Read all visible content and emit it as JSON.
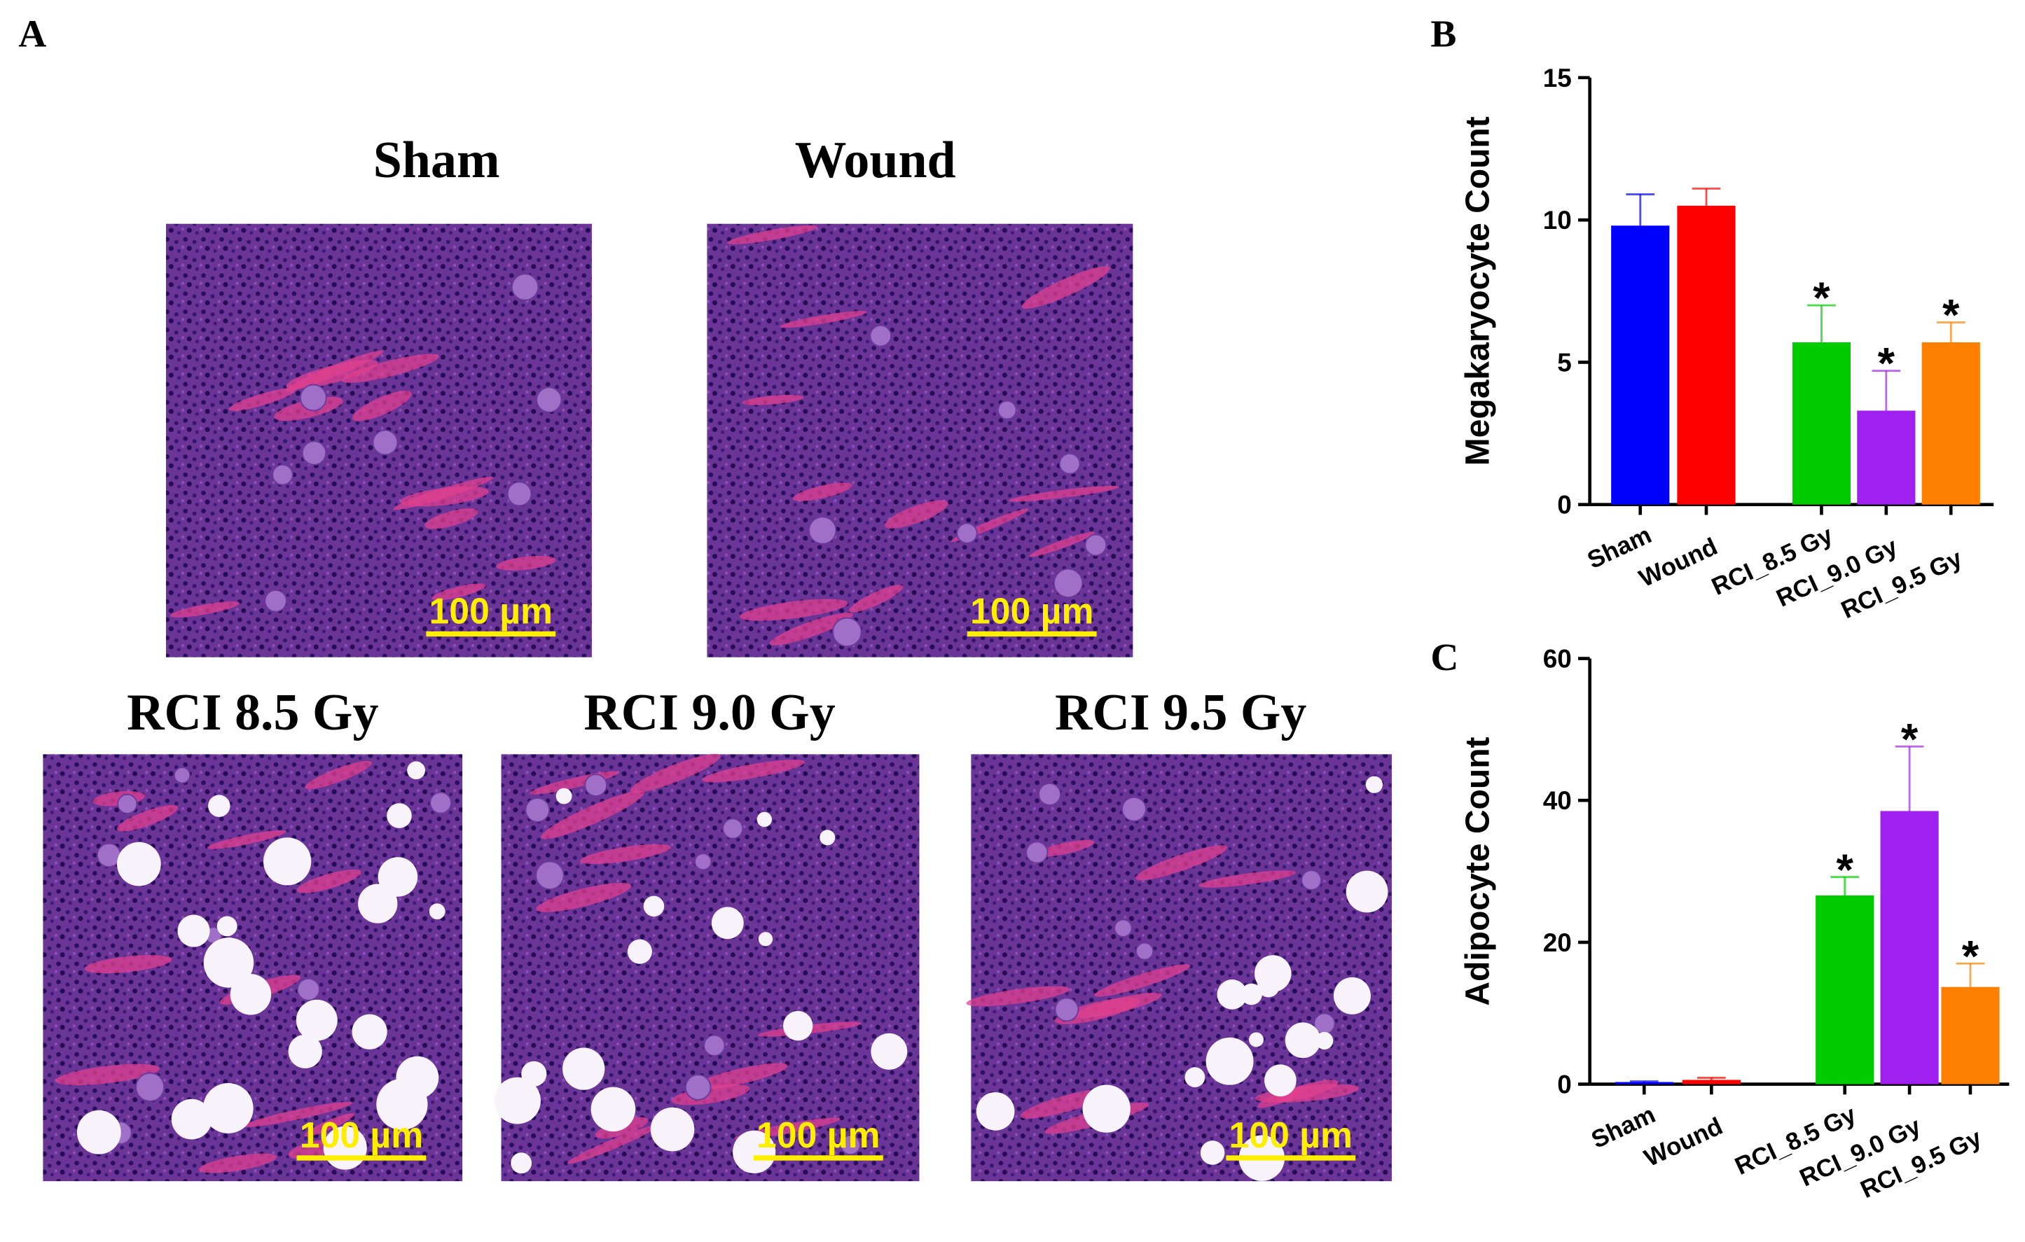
{
  "figure_panel_label": "A",
  "histology": [
    {
      "title": "Sham",
      "scale_bar": "100 µm"
    },
    {
      "title": "Wound",
      "scale_bar": "100 µm"
    },
    {
      "title": "RCI 8.5 Gy",
      "scale_bar": "100 µm"
    },
    {
      "title": "RCI 9.0 Gy",
      "scale_bar": "100 µm"
    },
    {
      "title": "RCI 9.5 Gy",
      "scale_bar": "100 µm"
    }
  ],
  "chart_data": [
    {
      "type": "bar",
      "panel_label": "B",
      "y_label": "Megakaryocyte Count",
      "categories": [
        "Sham",
        "Wound",
        "RCI_8.5 Gy",
        "RCI_9.0 Gy",
        "RCI_9.5 Gy"
      ],
      "values": [
        9.8,
        10.5,
        5.7,
        3.3,
        5.7
      ],
      "errors": [
        1.1,
        0.6,
        1.3,
        1.4,
        0.7
      ],
      "annotations": [
        null,
        null,
        "*",
        "*",
        "*"
      ],
      "colors": [
        "#0000ff",
        "#ff0000",
        "#00cc00",
        "#a020f0",
        "#ff8000"
      ],
      "ylim": [
        0,
        15
      ],
      "yticks": [
        0,
        5,
        10,
        15
      ]
    },
    {
      "type": "bar",
      "panel_label": "C",
      "y_label": "Adipocyte Count",
      "categories": [
        "Sham",
        "Wound",
        "RCI_8.5 Gy",
        "RCI_9.0 Gy",
        "RCI_9.5 Gy"
      ],
      "values": [
        0.3,
        0.6,
        26.6,
        38.5,
        13.7
      ],
      "errors": [
        0.1,
        0.3,
        2.6,
        9.1,
        3.3
      ],
      "annotations": [
        null,
        null,
        "*",
        "*",
        "*"
      ],
      "colors": [
        "#0000ff",
        "#ff0000",
        "#00cc00",
        "#a020f0",
        "#ff8000"
      ],
      "ylim": [
        0,
        60
      ],
      "yticks": [
        0,
        20,
        40,
        60
      ]
    }
  ]
}
